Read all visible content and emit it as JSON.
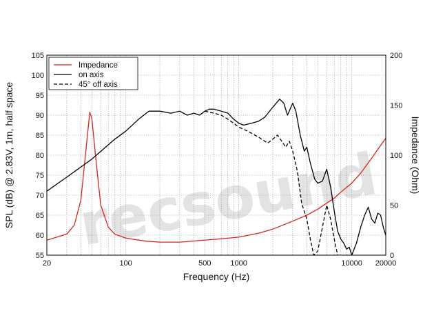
{
  "chart_data": {
    "type": "line",
    "xscale": "log",
    "xlim": [
      20,
      20000
    ],
    "xticks": [
      20,
      100,
      500,
      1000,
      10000,
      20000
    ],
    "xtick_labels": [
      "20",
      "100",
      "500",
      "1000",
      "10000",
      "20000"
    ],
    "xlabel": "Frequency (Hz)",
    "ylabel_left": "SPL (dB) @ 2.83V, 1m, half space",
    "ylim_left": [
      55,
      105
    ],
    "yticks_left": [
      "55",
      "60",
      "65",
      "70",
      "75",
      "80",
      "85",
      "90",
      "95",
      "100",
      "105"
    ],
    "ylabel_right": "Impedance (Ohm)",
    "ylim_right": [
      0,
      200
    ],
    "yticks_right": [
      "0",
      "50",
      "100",
      "150",
      "200"
    ],
    "grid": true,
    "legend_position": "top-left",
    "watermark": "recsound",
    "series": [
      {
        "name": "Impedance",
        "axis": "right",
        "color": "#d9241b",
        "style": "solid",
        "points": [
          [
            20,
            15
          ],
          [
            30,
            21
          ],
          [
            35,
            30
          ],
          [
            40,
            55
          ],
          [
            45,
            112
          ],
          [
            48,
            143
          ],
          [
            50,
            137
          ],
          [
            55,
            90
          ],
          [
            60,
            50
          ],
          [
            70,
            28
          ],
          [
            80,
            21
          ],
          [
            100,
            17
          ],
          [
            150,
            14
          ],
          [
            200,
            13
          ],
          [
            300,
            13
          ],
          [
            500,
            15
          ],
          [
            800,
            17
          ],
          [
            1000,
            18
          ],
          [
            1500,
            22
          ],
          [
            2000,
            26
          ],
          [
            3000,
            34
          ],
          [
            4000,
            40
          ],
          [
            5000,
            46
          ],
          [
            6000,
            52
          ],
          [
            7000,
            57
          ],
          [
            8000,
            63
          ],
          [
            10000,
            72
          ],
          [
            12000,
            82
          ],
          [
            15000,
            97
          ],
          [
            20000,
            117
          ]
        ]
      },
      {
        "name": "on axis",
        "axis": "left",
        "color": "#000000",
        "style": "solid",
        "points": [
          [
            20,
            71
          ],
          [
            30,
            74.5
          ],
          [
            50,
            79
          ],
          [
            80,
            84
          ],
          [
            100,
            86
          ],
          [
            130,
            89
          ],
          [
            160,
            91
          ],
          [
            200,
            91
          ],
          [
            250,
            90.5
          ],
          [
            300,
            91
          ],
          [
            350,
            90
          ],
          [
            400,
            90.5
          ],
          [
            450,
            90
          ],
          [
            500,
            91
          ],
          [
            550,
            91.5
          ],
          [
            600,
            91.5
          ],
          [
            700,
            91
          ],
          [
            800,
            90.5
          ],
          [
            900,
            89
          ],
          [
            1000,
            88
          ],
          [
            1100,
            87.5
          ],
          [
            1300,
            88
          ],
          [
            1500,
            88.5
          ],
          [
            1700,
            89.5
          ],
          [
            2000,
            92
          ],
          [
            2300,
            94
          ],
          [
            2500,
            93
          ],
          [
            2700,
            90
          ],
          [
            3000,
            93
          ],
          [
            3200,
            91
          ],
          [
            3500,
            85
          ],
          [
            3800,
            81
          ],
          [
            4000,
            82
          ],
          [
            4300,
            78
          ],
          [
            4700,
            74
          ],
          [
            5000,
            73
          ],
          [
            5500,
            73.5
          ],
          [
            6000,
            76.5
          ],
          [
            6500,
            72
          ],
          [
            7000,
            66
          ],
          [
            7500,
            61
          ],
          [
            8000,
            59
          ],
          [
            8500,
            58
          ],
          [
            9000,
            56.5
          ],
          [
            9500,
            57
          ],
          [
            10000,
            55
          ],
          [
            11000,
            58
          ],
          [
            12000,
            62
          ],
          [
            13000,
            65
          ],
          [
            14000,
            67
          ],
          [
            15000,
            64
          ],
          [
            16000,
            63
          ],
          [
            17000,
            65.5
          ],
          [
            18000,
            65
          ],
          [
            19000,
            62
          ],
          [
            20000,
            60
          ]
        ]
      },
      {
        "name": "45° off axis",
        "axis": "left",
        "color": "#000000",
        "style": "dashed",
        "points": [
          [
            500,
            91
          ],
          [
            600,
            90.5
          ],
          [
            700,
            90
          ],
          [
            800,
            89
          ],
          [
            900,
            88
          ],
          [
            1000,
            87
          ],
          [
            1200,
            86
          ],
          [
            1500,
            84.5
          ],
          [
            1800,
            83
          ],
          [
            2000,
            84
          ],
          [
            2200,
            85
          ],
          [
            2400,
            83.5
          ],
          [
            2600,
            82
          ],
          [
            2800,
            83.5
          ],
          [
            3000,
            81
          ],
          [
            3300,
            76
          ],
          [
            3600,
            68
          ],
          [
            4000,
            64
          ],
          [
            4300,
            59
          ],
          [
            4600,
            55
          ],
          [
            5000,
            56
          ],
          [
            5500,
            62
          ],
          [
            6000,
            67.5
          ],
          [
            6500,
            64
          ],
          [
            7000,
            59
          ],
          [
            7500,
            55
          ]
        ]
      }
    ]
  }
}
